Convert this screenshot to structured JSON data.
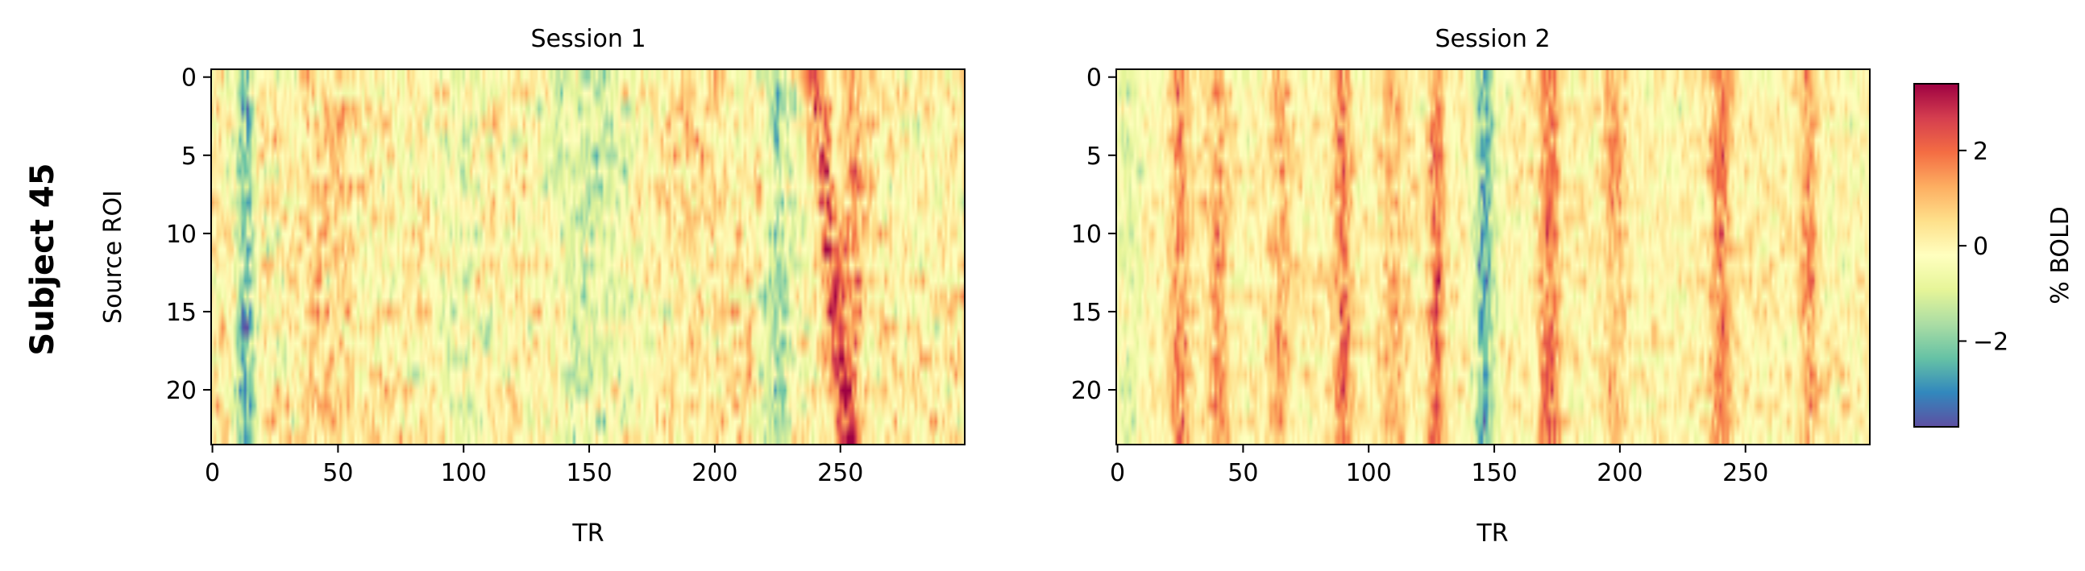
{
  "figure": {
    "row_label": "Subject 45"
  },
  "chart_data": [
    {
      "type": "heatmap",
      "title": "Session 1",
      "xlabel": "TR",
      "ylabel": "Source ROI",
      "x_range": [
        0,
        299
      ],
      "y_range": [
        0,
        23
      ],
      "x_ticks": [
        0,
        50,
        100,
        150,
        200,
        250
      ],
      "y_ticks": [
        0,
        5,
        10,
        15,
        20
      ],
      "n_rows": 24,
      "n_cols": 300,
      "features": [
        {
          "tr": 13,
          "amp": -2.2,
          "width": 4
        },
        {
          "tr": 45,
          "amp": 0.8,
          "width": 8
        },
        {
          "tr": 100,
          "amp": -0.5,
          "width": 10
        },
        {
          "tr": 150,
          "amp": -0.9,
          "width": 15
        },
        {
          "tr": 195,
          "amp": 0.3,
          "width": 10
        },
        {
          "tr": 225,
          "amp": -1.6,
          "width": 6
        },
        {
          "tr": 240,
          "amp": 2.2,
          "width": 4,
          "slope": 0.55
        },
        {
          "tr": 255,
          "amp": 1.2,
          "width": 5
        }
      ],
      "noise": 1.1
    },
    {
      "type": "heatmap",
      "title": "Session 2",
      "xlabel": "TR",
      "ylabel": "",
      "x_range": [
        0,
        299
      ],
      "y_range": [
        0,
        23
      ],
      "x_ticks": [
        0,
        50,
        100,
        150,
        200,
        250
      ],
      "y_ticks": [
        0,
        5,
        10,
        15,
        20
      ],
      "n_rows": 24,
      "n_cols": 300,
      "features": [
        {
          "tr": 5,
          "amp": -0.8,
          "width": 5
        },
        {
          "tr": 25,
          "amp": 1.6,
          "width": 4
        },
        {
          "tr": 40,
          "amp": 1.3,
          "width": 4
        },
        {
          "tr": 65,
          "amp": 1.2,
          "width": 4
        },
        {
          "tr": 90,
          "amp": 1.8,
          "width": 4
        },
        {
          "tr": 110,
          "amp": 1.0,
          "width": 5
        },
        {
          "tr": 127,
          "amp": 2.0,
          "width": 3
        },
        {
          "tr": 146,
          "amp": -2.4,
          "width": 4
        },
        {
          "tr": 172,
          "amp": 1.8,
          "width": 4
        },
        {
          "tr": 198,
          "amp": 1.0,
          "width": 5
        },
        {
          "tr": 240,
          "amp": 1.7,
          "width": 4
        },
        {
          "tr": 275,
          "amp": 1.3,
          "width": 4
        }
      ],
      "noise": 0.8
    }
  ],
  "colorbar": {
    "label": "% BOLD",
    "range": [
      -3.8,
      3.4
    ],
    "ticks": [
      -2,
      0,
      2
    ],
    "tick_labels": [
      "−2",
      "0",
      "2"
    ],
    "colormap": "Spectral_r",
    "colormap_stops": [
      "#5e4fa2",
      "#3288bd",
      "#66c2a5",
      "#abdda4",
      "#e6f598",
      "#ffffbf",
      "#fee08b",
      "#fdae61",
      "#f46d43",
      "#d53e4f",
      "#9e0142"
    ]
  }
}
